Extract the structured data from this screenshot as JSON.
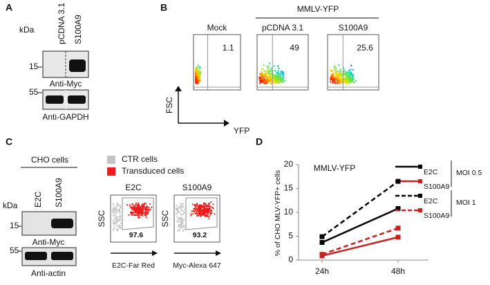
{
  "panel_a": {
    "label": "A",
    "kda": "kDa",
    "lanes": [
      "pCDNA 3.1",
      "S100A9"
    ],
    "blots": [
      {
        "marker": 15,
        "antibody": "Anti-Myc"
      },
      {
        "marker": 55,
        "antibody": "Anti-GAPDH"
      }
    ]
  },
  "panel_b": {
    "label": "B",
    "header": "MMLV-YFP",
    "plots": [
      {
        "title": "Mock",
        "value": 1.1
      },
      {
        "title": "pCDNA 3.1",
        "value": 49
      },
      {
        "title": "S100A9",
        "value": 25.6
      }
    ],
    "y_axis": "FSC",
    "x_axis": "YFP"
  },
  "panel_c": {
    "label": "C",
    "cell_line": "CHO cells",
    "kda": "kDa",
    "lanes": [
      "E2C",
      "S100A9"
    ],
    "blots": [
      {
        "marker": 15,
        "antibody": "Anti-Myc"
      },
      {
        "marker": 55,
        "antibody": "Anti-actin"
      }
    ],
    "legend": [
      {
        "label": "CTR cells",
        "color": "#c4c4c4"
      },
      {
        "label": "Transduced cells",
        "color": "#ee1c1c"
      }
    ],
    "plots": [
      {
        "title": "E2C",
        "y_axis": "SSC",
        "value": 97.6,
        "x_axis": "E2C-Far Red"
      },
      {
        "title": "S100A9",
        "y_axis": "SSC",
        "value": 93.2,
        "x_axis": "Myc-Alexa 647"
      }
    ]
  },
  "panel_d_label": "D",
  "chart_data": {
    "type": "line",
    "title": "MMLV-YFP",
    "y_label": "% of CHO MLV-YFP+ cells",
    "categories": [
      "24h",
      "48h"
    ],
    "ylim": [
      0,
      20
    ],
    "yticks": [
      0,
      5,
      10,
      15,
      20
    ],
    "legend_groups": [
      "MOI 0.5",
      "MOI 1"
    ],
    "series": [
      {
        "name": "E2C",
        "color": "#000000",
        "dash": "solid",
        "values": [
          3.7,
          10.8
        ]
      },
      {
        "name": "S100A9",
        "color": "#c8201e",
        "dash": "solid",
        "values": [
          0.9,
          4.8
        ]
      },
      {
        "name": "E2C",
        "color": "#000000",
        "dash": "dashed",
        "values": [
          4.9,
          16.5
        ]
      },
      {
        "name": "S100A9",
        "color": "#c8201e",
        "dash": "dashed",
        "values": [
          1.2,
          6.7
        ]
      }
    ]
  }
}
